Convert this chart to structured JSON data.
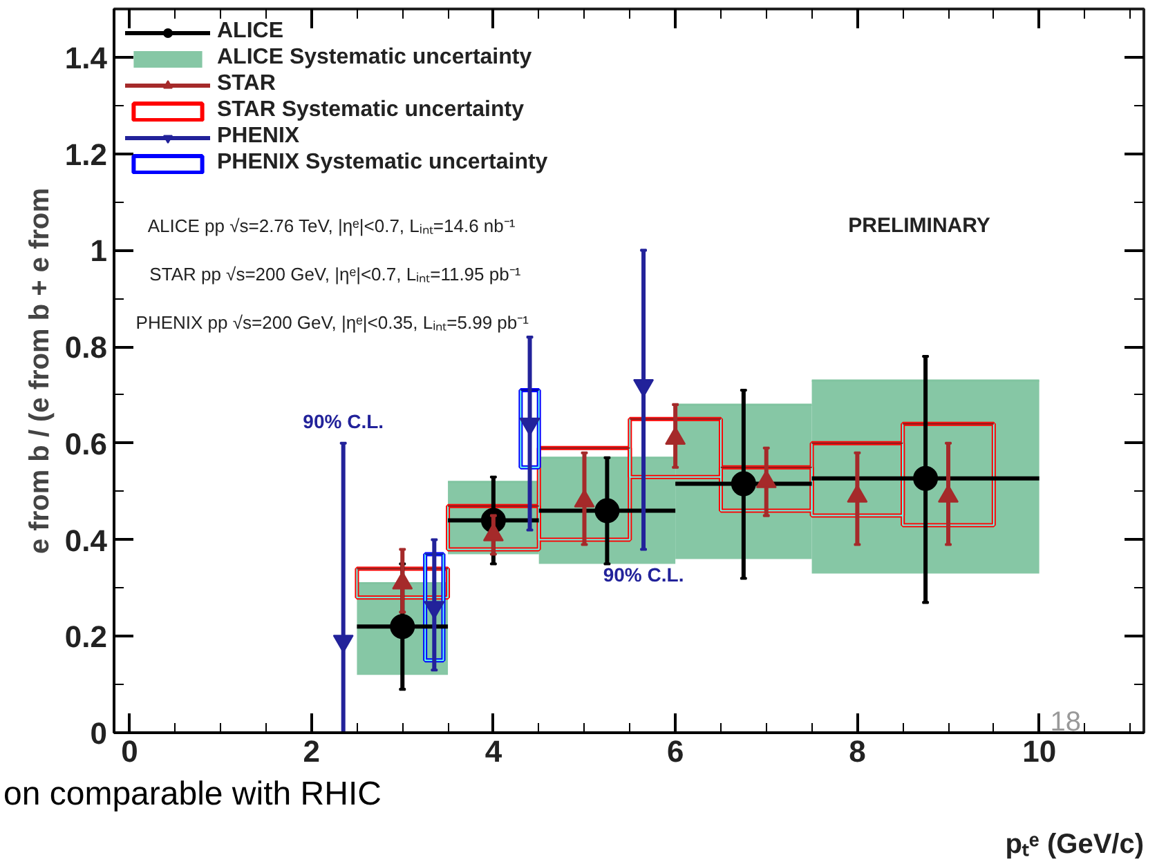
{
  "chart_data": {
    "type": "scatter",
    "xlabel": "pₜᵉ (GeV/c)",
    "ylabel": "e from b / (e from b + e from",
    "xlim": [
      -0.17,
      11.15
    ],
    "ylim": [
      0,
      1.5
    ],
    "xticks": [
      0,
      {
        "value": 0.5,
        "label": null
      },
      {
        "value": 1,
        "label": null
      },
      {
        "value": 1.5,
        "label": null
      },
      2,
      {
        "value": 2.5,
        "label": null
      },
      {
        "value": 3,
        "label": null
      },
      {
        "value": 3.5,
        "label": null
      },
      4,
      {
        "value": 4.5,
        "label": null
      },
      {
        "value": 5,
        "label": null
      },
      {
        "value": 5.5,
        "label": null
      },
      6,
      {
        "value": 6.5,
        "label": null
      },
      {
        "value": 7,
        "label": null
      },
      {
        "value": 7.5,
        "label": null
      },
      8,
      {
        "value": 8.5,
        "label": null
      },
      {
        "value": 9,
        "label": null
      },
      {
        "value": 9.5,
        "label": null
      },
      10,
      {
        "value": 10.5,
        "label": null
      },
      {
        "value": 11,
        "label": null
      }
    ],
    "yticks": [
      0,
      {
        "value": 0.1,
        "label": null
      },
      0.2,
      {
        "value": 0.3,
        "label": null
      },
      0.4,
      {
        "value": 0.5,
        "label": null
      },
      0.6,
      {
        "value": 0.7,
        "label": null
      },
      0.8,
      {
        "value": 0.9,
        "label": null
      },
      1,
      {
        "value": 1.1,
        "label": null
      },
      1.2,
      {
        "value": 1.3,
        "label": null
      },
      1.4
    ],
    "grid": false,
    "legend": "top left",
    "series": [
      {
        "name": "ALICE",
        "marker": "circle",
        "color": "#000000",
        "x": [
          3,
          4,
          5.25,
          6.75,
          8.75
        ],
        "values": [
          0.22,
          0.44,
          0.46,
          0.516,
          0.527
        ],
        "errors": [
          [
            0.09,
            0.35
          ],
          [
            0.35,
            0.53
          ],
          [
            0.35,
            0.57
          ],
          [
            0.32,
            0.71
          ],
          [
            0.27,
            0.78
          ]
        ],
        "xerrors": [
          0.5,
          0.5,
          0.75,
          0.75,
          1.25
        ]
      },
      {
        "name": "ALICE Systematic uncertainty",
        "type": "bar",
        "color": "#80c4a0",
        "x": [
          3,
          4,
          5.25,
          6.75,
          8.75
        ],
        "base": [
          0.12,
          0.37,
          0.35,
          0.36,
          0.33
        ],
        "values": [
          0.19,
          0.15,
          0.22,
          0.32,
          0.4
        ],
        "xerrors": [
          0.5,
          0.5,
          0.75,
          0.75,
          1.25
        ]
      },
      {
        "name": "STAR",
        "marker": "triangle",
        "color": "#a52a2a",
        "x": [
          3,
          4,
          5,
          6,
          7,
          8,
          9
        ],
        "values": [
          0.31,
          0.41,
          0.48,
          0.61,
          0.52,
          0.49,
          0.49
        ],
        "errors": [
          [
            0.25,
            0.38
          ],
          [
            0.37,
            0.45
          ],
          [
            0.39,
            0.58
          ],
          [
            0.55,
            0.68
          ],
          [
            0.45,
            0.59
          ],
          [
            0.39,
            0.58
          ],
          [
            0.39,
            0.6
          ]
        ]
      },
      {
        "name": "STAR Systematic uncertainty",
        "type": "bar",
        "line_style": "solid",
        "color": "#ff0000",
        "x": [
          3,
          4,
          5,
          6,
          7,
          8,
          9
        ],
        "base": [
          0.28,
          0.38,
          0.4,
          0.53,
          0.46,
          0.45,
          0.43
        ],
        "values": [
          0.06,
          0.09,
          0.19,
          0.12,
          0.09,
          0.15,
          0.21
        ],
        "xerrors": [
          0.5,
          0.5,
          0.5,
          0.5,
          0.5,
          0.5,
          0.5
        ]
      },
      {
        "name": "PHENIX",
        "marker": "triangle_down",
        "color": "#22229a",
        "x": [
          2.35,
          3.35,
          4.4,
          5.65
        ],
        "values": [
          0.19,
          0.26,
          0.64,
          0.72
        ],
        "errors": [
          [
            0,
            0.6
          ],
          [
            0.13,
            0.4
          ],
          [
            0.42,
            0.82
          ],
          [
            0.38,
            1.0
          ]
        ]
      },
      {
        "name": "PHENIX Systematic uncertainty",
        "type": "bar",
        "line_style": "solid",
        "color": "#0000ff",
        "x": [
          3.35,
          4.4
        ],
        "base": [
          0.15,
          0.55
        ],
        "values": [
          0.22,
          0.16
        ],
        "xerrors": [
          0.1,
          0.1
        ]
      }
    ],
    "annotations": [
      "ALICE pp √s=2.76 TeV, |ηᵉ|<0.7, Lᵢₙₜ=14.6 nb⁻¹",
      "STAR pp √s=200 GeV, |ηᵉ|<0.7, Lᵢₙₜ=11.95 pb⁻¹",
      "PHENIX pp √s=200 GeV, |ηᵉ|<0.35, Lᵢₙₜ=5.99 pb⁻¹",
      {
        "text": "90% C.L.",
        "x": 2.35,
        "y": 0.6
      },
      {
        "text": "90% C.L.",
        "x": 5.65,
        "y": 0.38
      },
      "PRELIMINARY",
      "on comparable with RHIC",
      "18"
    ]
  }
}
